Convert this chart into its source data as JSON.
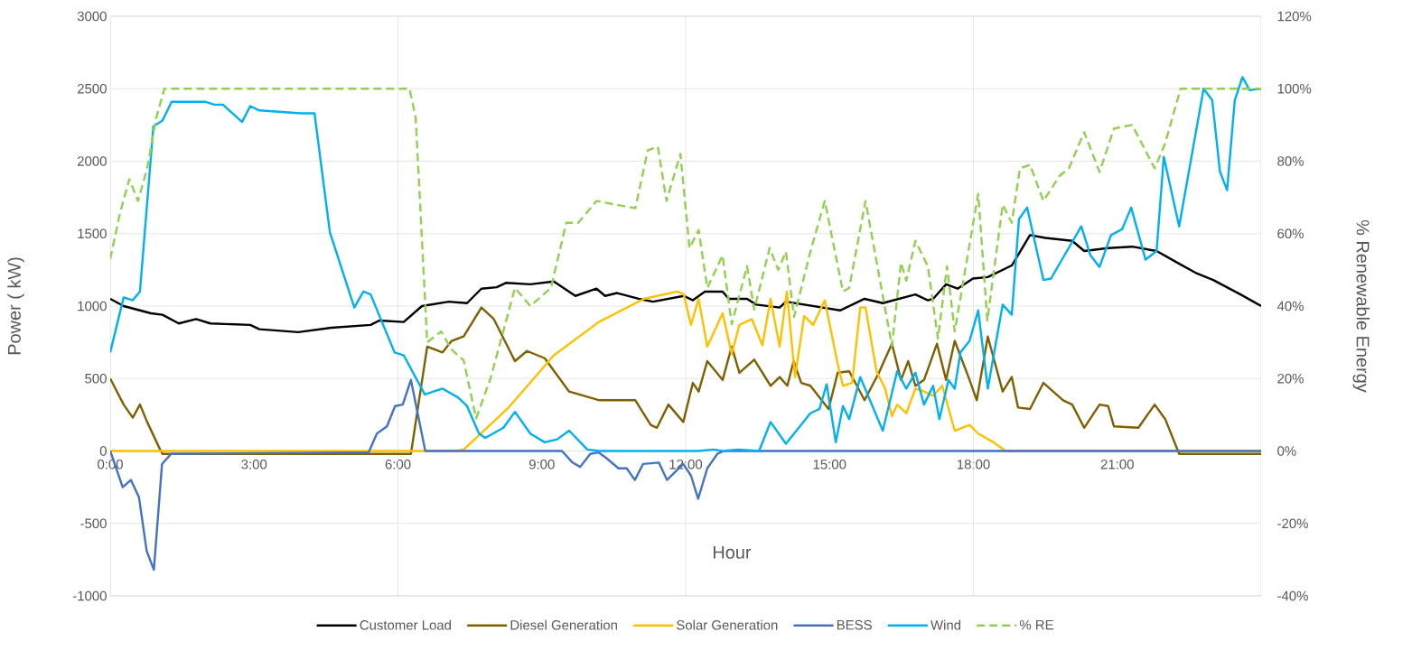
{
  "chart_data": {
    "type": "line",
    "xlabel": "Hour",
    "ylabel": "Power ( kW)",
    "y2label": "% Renewable Energy",
    "xlim": [
      0,
      24
    ],
    "xticks": [
      {
        "value": 0,
        "label": "0:00"
      },
      {
        "value": 3,
        "label": "3:00"
      },
      {
        "value": 6,
        "label": "6:00"
      },
      {
        "value": 9,
        "label": "9:00"
      },
      {
        "value": 12,
        "label": "12:00"
      },
      {
        "value": 15,
        "label": "15:00"
      },
      {
        "value": 18,
        "label": "18:00"
      },
      {
        "value": 21,
        "label": "21:00"
      }
    ],
    "ylim": [
      -1000,
      3000
    ],
    "yticks": [
      -1000,
      -500,
      0,
      500,
      1000,
      1500,
      2000,
      2500,
      3000
    ],
    "y2lim": [
      -40,
      120
    ],
    "y2ticks": [
      {
        "value": -40,
        "label": "-40%"
      },
      {
        "value": -20,
        "label": "-20%"
      },
      {
        "value": 0,
        "label": "0%"
      },
      {
        "value": 20,
        "label": "20%"
      },
      {
        "value": 40,
        "label": "40%"
      },
      {
        "value": 60,
        "label": "60%"
      },
      {
        "value": 80,
        "label": "80%"
      },
      {
        "value": 100,
        "label": "100%"
      },
      {
        "value": 120,
        "label": "120%"
      }
    ],
    "grid": true,
    "legend": "bottom",
    "series": [
      {
        "name": "Customer Load",
        "color": "#000000",
        "x": [
          0,
          0.28,
          0.85,
          1.09,
          1.43,
          1.79,
          2.09,
          2.92,
          3.11,
          3.92,
          4.61,
          5.43,
          5.61,
          6.12,
          6.5,
          7.06,
          7.44,
          7.74,
          8.06,
          8.25,
          8.76,
          9.25,
          9.7,
          10.14,
          10.32,
          10.57,
          11.02,
          11.32,
          11.96,
          12.15,
          12.4,
          12.77,
          12.9,
          13.28,
          13.47,
          13.96,
          14.09,
          15.22,
          15.73,
          16.11,
          16.79,
          17.05,
          17.16,
          17.43,
          17.67,
          17.99,
          18.3,
          18.8,
          19.18,
          19.5,
          20.06,
          20.31,
          20.81,
          21.31,
          21.82,
          22.25,
          22.63,
          23.0,
          23.57,
          24
        ],
        "values": [
          1050,
          1000,
          950,
          940,
          880,
          910,
          880,
          870,
          840,
          820,
          850,
          870,
          900,
          890,
          1000,
          1030,
          1020,
          1120,
          1130,
          1160,
          1150,
          1170,
          1070,
          1120,
          1070,
          1090,
          1050,
          1030,
          1070,
          1040,
          1100,
          1100,
          1050,
          1050,
          1010,
          990,
          1030,
          970,
          1050,
          1020,
          1080,
          1040,
          1050,
          1150,
          1120,
          1190,
          1200,
          1280,
          1490,
          1470,
          1450,
          1380,
          1400,
          1410,
          1380,
          1300,
          1230,
          1180,
          1080,
          1000
        ]
      },
      {
        "name": "Diesel Generation",
        "color": "#7f6000",
        "x": [
          0,
          0.28,
          0.47,
          0.62,
          0.77,
          1.04,
          1.09,
          6.27,
          6.61,
          6.93,
          7.12,
          7.37,
          7.74,
          8.0,
          8.44,
          8.69,
          9.06,
          9.57,
          10.2,
          10.95,
          11.27,
          11.4,
          11.64,
          11.95,
          12.15,
          12.27,
          12.45,
          12.77,
          12.96,
          13.12,
          13.43,
          13.77,
          13.96,
          14.12,
          14.25,
          14.41,
          14.6,
          14.98,
          15.17,
          15.41,
          15.73,
          16.03,
          16.3,
          16.49,
          16.64,
          16.79,
          16.97,
          17.24,
          17.43,
          17.61,
          17.92,
          18.07,
          18.3,
          18.61,
          18.8,
          18.93,
          19.18,
          19.46,
          19.87,
          20.06,
          20.31,
          20.63,
          20.81,
          20.93,
          21.44,
          21.78,
          22.0,
          22.29,
          24
        ],
        "values": [
          500,
          320,
          230,
          320,
          200,
          10,
          -20,
          -20,
          720,
          680,
          760,
          790,
          990,
          910,
          620,
          690,
          640,
          410,
          350,
          350,
          180,
          160,
          320,
          200,
          470,
          410,
          620,
          490,
          720,
          540,
          630,
          450,
          510,
          450,
          620,
          470,
          450,
          290,
          540,
          550,
          350,
          540,
          740,
          490,
          620,
          450,
          490,
          740,
          490,
          760,
          490,
          350,
          790,
          410,
          510,
          300,
          290,
          470,
          350,
          320,
          160,
          320,
          310,
          170,
          160,
          320,
          220,
          -20,
          -20
        ]
      },
      {
        "name": "Solar Generation",
        "color": "#ffc000",
        "x": [
          0,
          7.2,
          7.37,
          8.31,
          9.25,
          10.19,
          11.13,
          11.83,
          11.96,
          12.11,
          12.27,
          12.45,
          12.77,
          12.96,
          13.12,
          13.38,
          13.6,
          13.77,
          13.96,
          14.11,
          14.28,
          14.47,
          14.66,
          14.9,
          15.17,
          15.28,
          15.47,
          15.64,
          15.75,
          15.98,
          16.16,
          16.3,
          16.41,
          16.6,
          16.79,
          16.97,
          17.16,
          17.35,
          17.61,
          17.92,
          18.1,
          18.42,
          18.67,
          24
        ],
        "values": [
          0,
          0,
          10,
          300,
          660,
          890,
          1050,
          1100,
          1080,
          870,
          1050,
          720,
          950,
          670,
          870,
          910,
          730,
          1050,
          720,
          1100,
          510,
          930,
          870,
          1040,
          600,
          450,
          470,
          990,
          990,
          550,
          430,
          240,
          320,
          260,
          430,
          410,
          380,
          450,
          140,
          180,
          120,
          60,
          0,
          0
        ]
      },
      {
        "name": "BESS",
        "color": "#4472c4",
        "x": [
          0,
          0.26,
          0.43,
          0.6,
          0.76,
          0.91,
          1.08,
          1.27,
          5.0,
          5.39,
          5.56,
          5.77,
          5.94,
          6.1,
          6.27,
          6.57,
          9.42,
          9.64,
          9.8,
          10.01,
          10.18,
          10.35,
          10.6,
          10.77,
          10.94,
          11.11,
          11.44,
          11.61,
          11.95,
          12.11,
          12.26,
          12.45,
          12.66,
          12.8,
          24
        ],
        "values": [
          0,
          -250,
          -200,
          -320,
          -690,
          -820,
          -90,
          -20,
          -10,
          -10,
          120,
          170,
          310,
          320,
          490,
          0,
          0,
          -80,
          -110,
          -20,
          -10,
          -50,
          -120,
          -120,
          -200,
          -90,
          -80,
          -200,
          -90,
          -170,
          -330,
          -120,
          -20,
          0,
          0
        ]
      },
      {
        "name": "Wind",
        "color": "#00b0f0",
        "x": [
          0,
          0.28,
          0.47,
          0.62,
          0.9,
          1.09,
          1.28,
          1.98,
          2.17,
          2.35,
          2.75,
          2.92,
          3.11,
          3.98,
          4.26,
          4.58,
          5.09,
          5.28,
          5.43,
          5.93,
          6.12,
          6.56,
          6.93,
          7.25,
          7.44,
          7.69,
          7.82,
          8.2,
          8.44,
          8.76,
          9.06,
          9.32,
          9.57,
          9.95,
          10.19,
          12.27,
          12.58,
          12.77,
          13.09,
          13.53,
          13.77,
          14.09,
          14.6,
          14.79,
          14.94,
          15.13,
          15.28,
          15.41,
          15.64,
          16.11,
          16.41,
          16.6,
          16.79,
          16.97,
          17.16,
          17.29,
          17.48,
          17.61,
          17.73,
          17.92,
          18.1,
          18.3,
          18.61,
          18.8,
          18.95,
          19.12,
          19.46,
          19.62,
          19.74,
          20.25,
          20.44,
          20.63,
          20.87,
          21.1,
          21.29,
          21.59,
          21.82,
          21.97,
          22.29,
          22.8,
          22.98,
          23.14,
          23.29,
          23.45,
          23.61,
          23.76,
          24
        ],
        "values": [
          680,
          1060,
          1040,
          1100,
          2240,
          2280,
          2410,
          2410,
          2390,
          2390,
          2270,
          2380,
          2350,
          2330,
          2330,
          1510,
          990,
          1100,
          1080,
          680,
          660,
          390,
          430,
          370,
          310,
          120,
          90,
          160,
          270,
          120,
          60,
          80,
          140,
          10,
          0,
          0,
          10,
          0,
          10,
          0,
          200,
          50,
          260,
          290,
          460,
          60,
          310,
          220,
          510,
          140,
          550,
          430,
          540,
          320,
          450,
          220,
          490,
          430,
          680,
          760,
          970,
          430,
          1010,
          940,
          1600,
          1680,
          1180,
          1190,
          1260,
          1550,
          1350,
          1270,
          1490,
          1530,
          1680,
          1320,
          1380,
          2030,
          1550,
          2500,
          2420,
          1930,
          1800,
          2420,
          2580,
          2490,
          2500
        ]
      },
      {
        "name": "% RE",
        "color": "#92d050",
        "axis": "y2",
        "line_style": "dashed",
        "x": [
          0,
          0.21,
          0.4,
          0.58,
          0.77,
          0.96,
          1.13,
          6.24,
          6.37,
          6.61,
          6.9,
          7.12,
          7.37,
          7.63,
          7.93,
          8.44,
          8.76,
          9.19,
          9.51,
          9.76,
          10.14,
          10.95,
          11.21,
          11.42,
          11.6,
          11.89,
          12.08,
          12.27,
          12.45,
          12.77,
          12.96,
          13.28,
          13.43,
          13.75,
          13.93,
          14.09,
          14.26,
          14.6,
          14.9,
          15.28,
          15.41,
          15.75,
          16.3,
          16.49,
          16.6,
          16.79,
          17.05,
          17.26,
          17.45,
          17.61,
          18.1,
          18.29,
          18.61,
          18.8,
          18.97,
          19.18,
          19.46,
          19.8,
          19.99,
          20.31,
          20.63,
          20.93,
          21.31,
          21.78,
          22.0,
          22.32,
          24
        ],
        "values": [
          53,
          66,
          75,
          69,
          78,
          92,
          100,
          100,
          92,
          30,
          33,
          28,
          25,
          9,
          20,
          45,
          40,
          45,
          63,
          63,
          69,
          67,
          83,
          84,
          69,
          82,
          56,
          61,
          45,
          54,
          35,
          51,
          39,
          56,
          50,
          55,
          37,
          55,
          69,
          44,
          45,
          69,
          29,
          52,
          47,
          58,
          51,
          31,
          51,
          33,
          71,
          36,
          68,
          63,
          78,
          79,
          69,
          76,
          78,
          88,
          77,
          89,
          90,
          78,
          85,
          100,
          100
        ]
      }
    ]
  }
}
